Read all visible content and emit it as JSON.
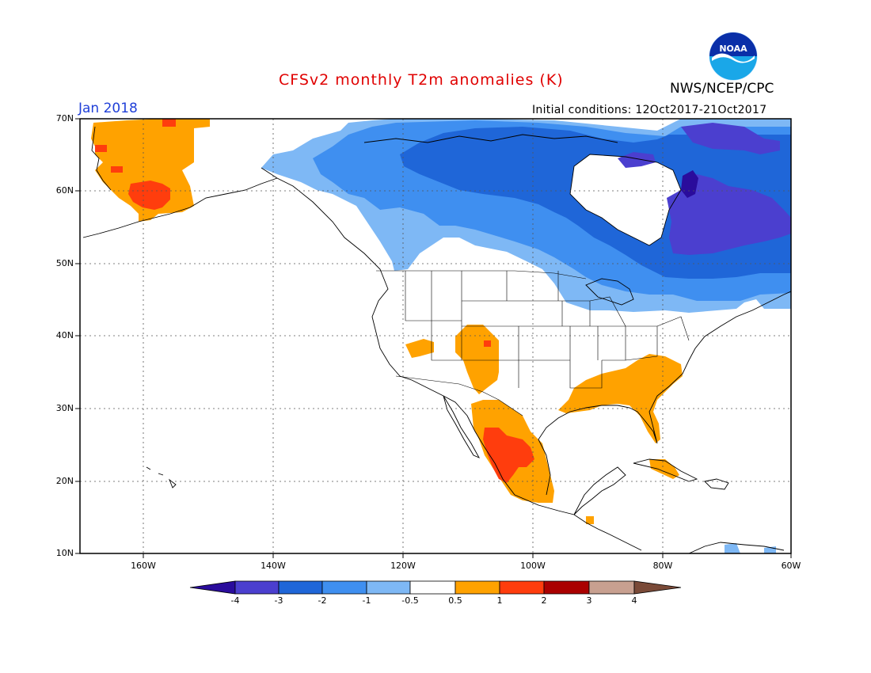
{
  "title": "CFSv2 monthly T2m anomalies (K)",
  "agency": "NWS/NCEP/CPC",
  "month": "Jan 2018",
  "initial_conditions": "Initial conditions: 12Oct2017-21Oct2017",
  "logo_text": "NOAA",
  "lat_labels": [
    "70N",
    "60N",
    "50N",
    "40N",
    "30N",
    "20N",
    "10N"
  ],
  "lon_labels": [
    "160W",
    "140W",
    "120W",
    "100W",
    "80W",
    "60W"
  ],
  "colorbar": {
    "labels": [
      "-4",
      "-3",
      "-2",
      "-1",
      "-0.5",
      "0.5",
      "1",
      "2",
      "3",
      "4"
    ],
    "colors": [
      "#2a0c9c",
      "#4b3fcf",
      "#1f66d8",
      "#3f8ff0",
      "#7eb8f5",
      "#ffffff",
      "#ffa200",
      "#ff3d0d",
      "#aa0000",
      "#c8a090",
      "#7a4a38"
    ]
  },
  "colors": {
    "title": "#e00000",
    "month": "#1f3fd8"
  }
}
